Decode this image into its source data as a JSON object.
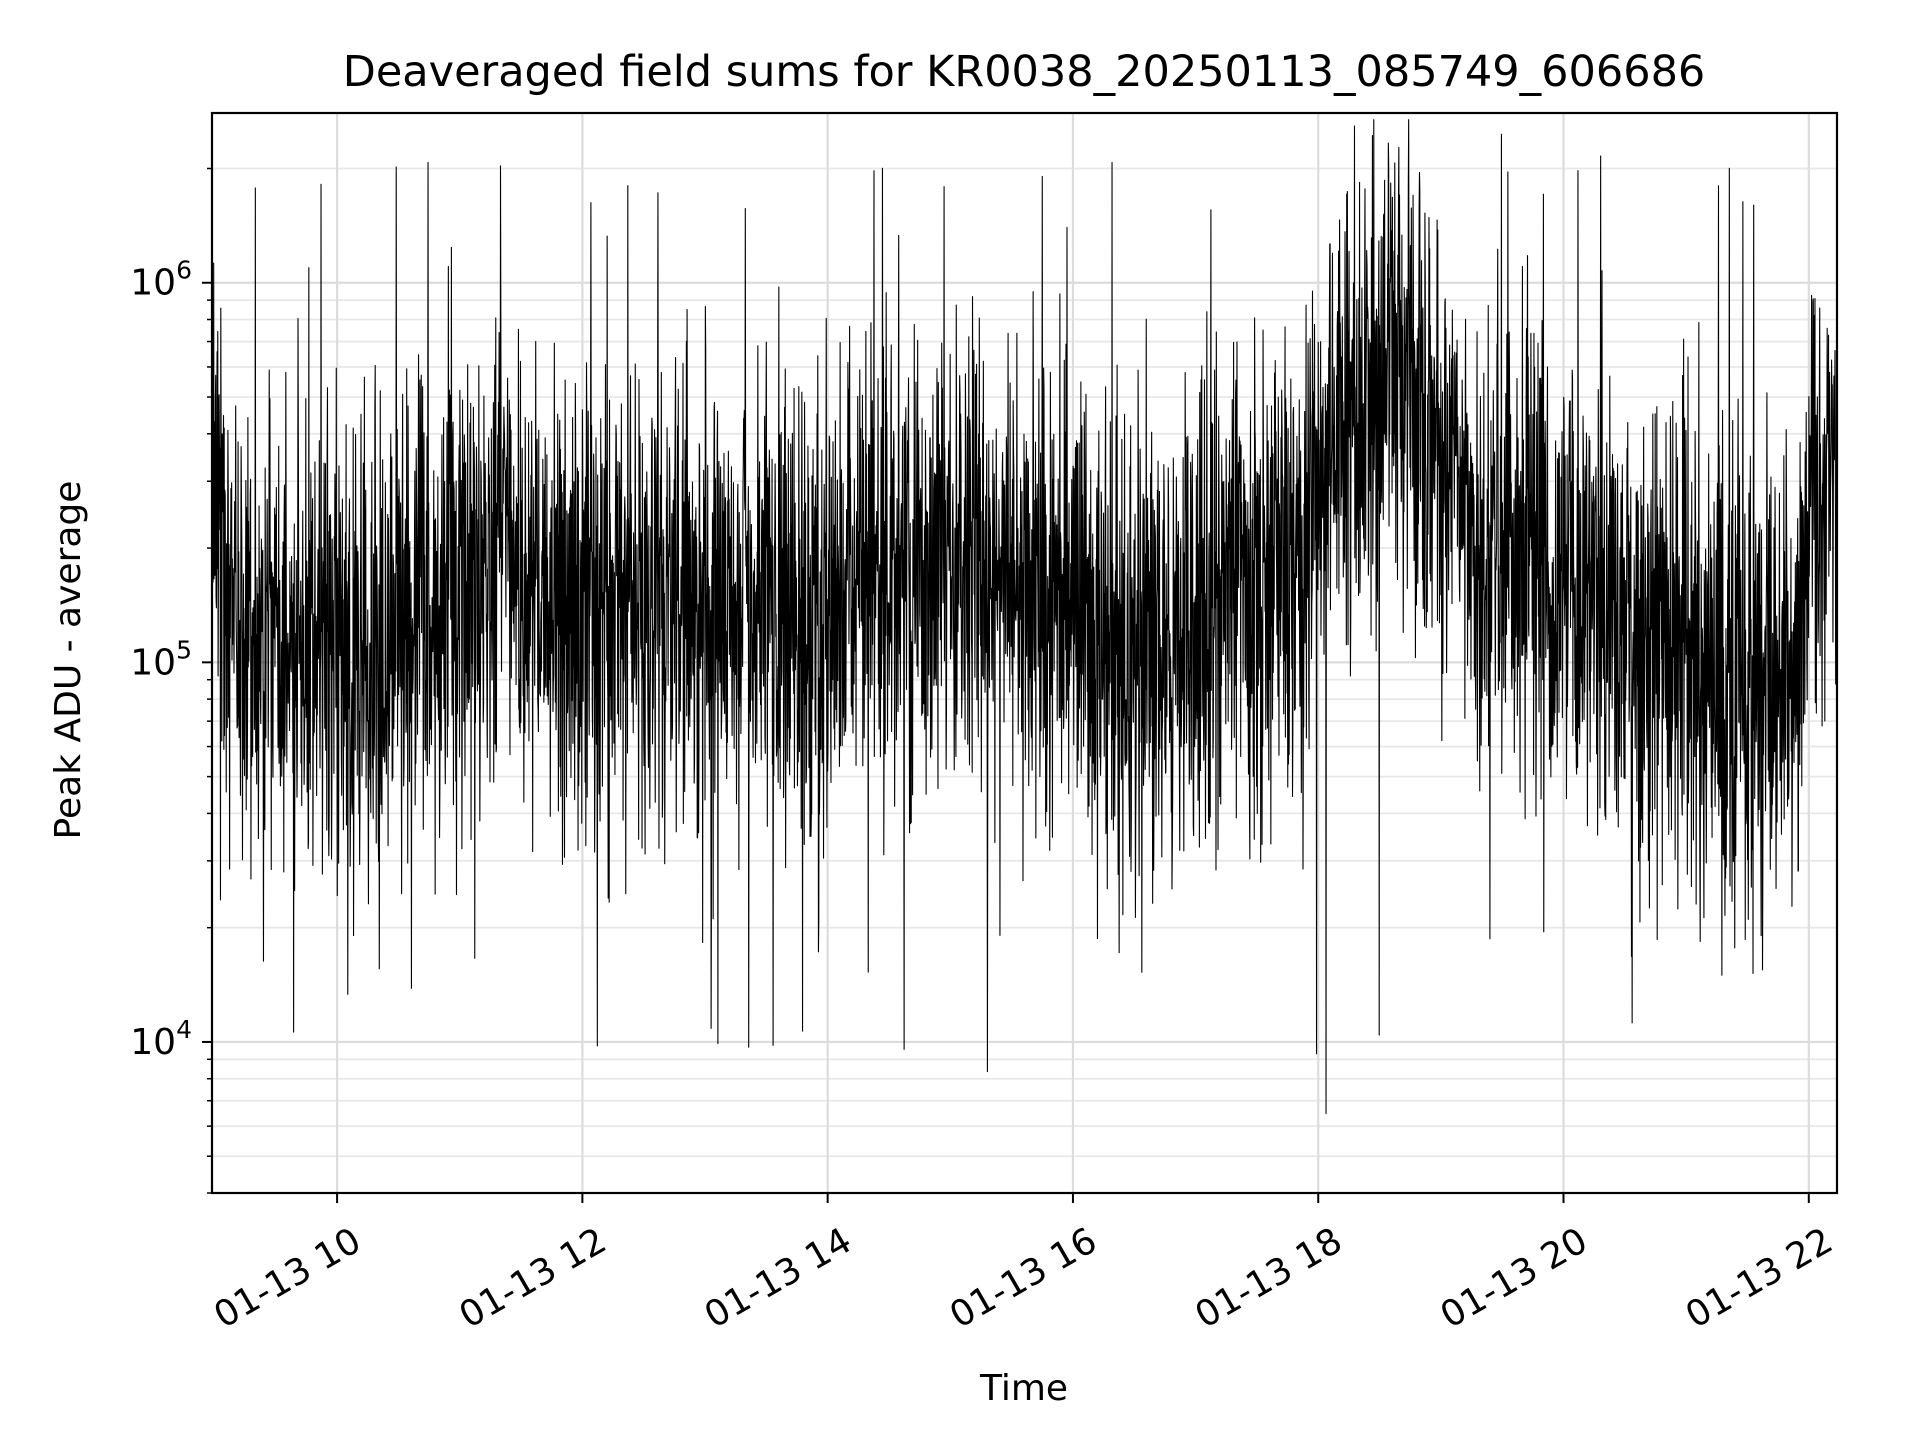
{
  "chart_data": {
    "type": "line",
    "title": "Deaveraged field sums for KR0038_20250113_085749_606686",
    "xlabel": "Time",
    "ylabel": "Peak ADU - average",
    "yscale": "log",
    "grid": true,
    "xlim_hours": [
      8.98,
      22.23
    ],
    "ylim": [
      4000,
      2800000
    ],
    "x_ticks": [
      {
        "label": "01-13 10",
        "hour": 10
      },
      {
        "label": "01-13 12",
        "hour": 12
      },
      {
        "label": "01-13 14",
        "hour": 14
      },
      {
        "label": "01-13 16",
        "hour": 16
      },
      {
        "label": "01-13 18",
        "hour": 18
      },
      {
        "label": "01-13 20",
        "hour": 20
      },
      {
        "label": "01-13 22",
        "hour": 22
      }
    ],
    "y_ticks": [
      {
        "base": "10",
        "exp": "4",
        "value": 10000
      },
      {
        "base": "10",
        "exp": "5",
        "value": 100000
      },
      {
        "base": "10",
        "exp": "6",
        "value": 1000000
      }
    ],
    "series_color": "#000000",
    "series": [
      {
        "x_hours": [
          8.98,
          9.2,
          9.4,
          9.6,
          9.8,
          10.0,
          10.3,
          10.6,
          10.9,
          11.2,
          11.35,
          11.5,
          11.8,
          12.1,
          12.4,
          12.8,
          13.2,
          13.6,
          13.9,
          14.2,
          14.6,
          15.0,
          15.3,
          15.6,
          15.9,
          16.2,
          16.45,
          16.7,
          17.0,
          17.3,
          17.6,
          17.9,
          18.2,
          18.5,
          18.8,
          19.1,
          19.4,
          19.7,
          20.0,
          20.3,
          20.6,
          20.9,
          21.2,
          21.5,
          21.8,
          21.9,
          22.0,
          22.23
        ],
        "y": [
          280000,
          120000,
          95000,
          110000,
          100000,
          120000,
          110000,
          140000,
          150000,
          140000,
          250000,
          120000,
          150000,
          140000,
          150000,
          160000,
          150000,
          140000,
          130000,
          160000,
          170000,
          180000,
          190000,
          170000,
          150000,
          100000,
          85000,
          120000,
          130000,
          150000,
          180000,
          250000,
          400000,
          550000,
          450000,
          320000,
          200000,
          200000,
          160000,
          130000,
          110000,
          100000,
          100000,
          90000,
          95000,
          100000,
          280000,
          320000
        ],
        "max": [
          2100000,
          1750000,
          1850000,
          1850000,
          2100000,
          1850000
        ],
        "min": [
          5300,
          7600,
          8400,
          9000,
          9200,
          9500
        ],
        "count_points": 4800
      }
    ]
  }
}
